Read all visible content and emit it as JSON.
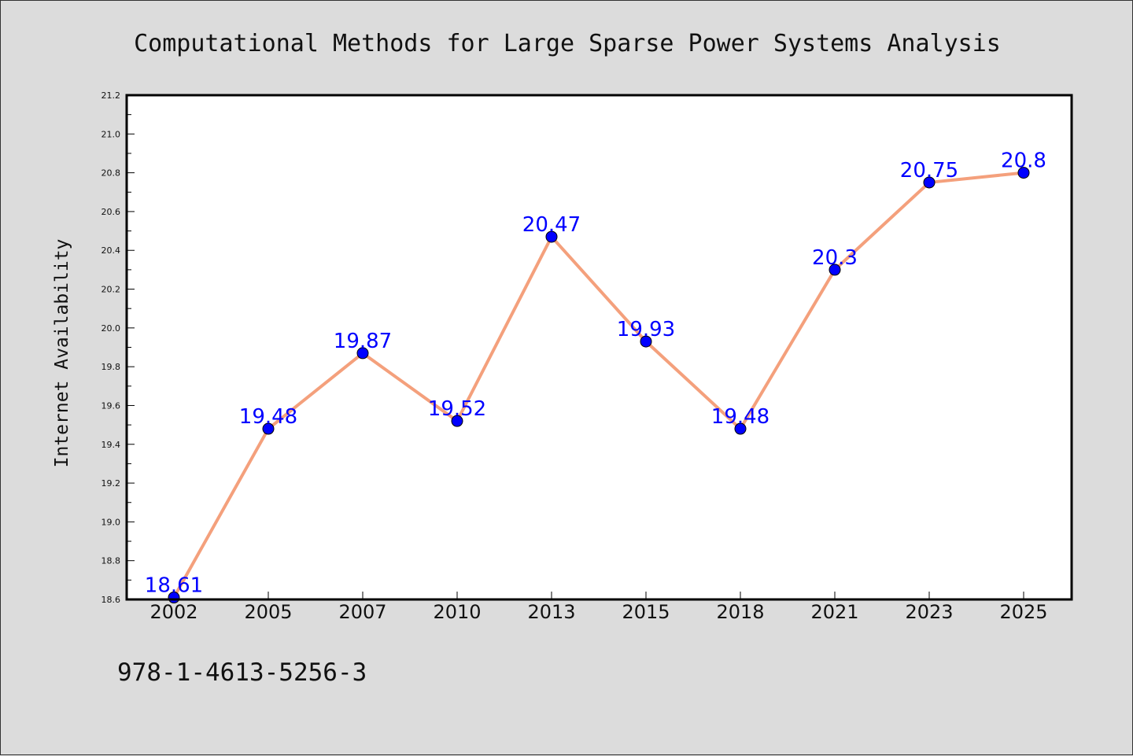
{
  "chart_data": {
    "type": "line",
    "title": "Computational Methods for Large Sparse Power Systems Analysis",
    "xlabel": "",
    "ylabel": "Internet Availability",
    "categories": [
      "2002",
      "2005",
      "2007",
      "2010",
      "2013",
      "2015",
      "2018",
      "2021",
      "2023",
      "2025"
    ],
    "series": [
      {
        "values": [
          18.61,
          19.48,
          19.87,
          19.52,
          20.47,
          19.93,
          19.48,
          20.3,
          20.75,
          20.8
        ],
        "labels": [
          "18.61",
          "19.48",
          "19.87",
          "19.52",
          "20.47",
          "19.93",
          "19.48",
          "20.3",
          "20.75",
          "20.8"
        ],
        "line_color": "#f4a07c",
        "marker_color": "#0000ff"
      }
    ],
    "ylim": [
      18.6,
      21.2
    ],
    "yticks": [
      "18.6",
      "18.8",
      "19.0",
      "19.2",
      "19.4",
      "19.6",
      "19.8",
      "20.0",
      "20.2",
      "20.4",
      "20.6",
      "20.8",
      "21.0",
      "21.2"
    ],
    "grid": false,
    "legend": "none"
  },
  "footer": {
    "isbn": "978-1-4613-5256-3"
  },
  "colors": {
    "background": "#dcdcdc",
    "plot_background": "#ffffff",
    "line": "#f4a07c",
    "marker": "#0000ff",
    "data_label": "#0000ff"
  }
}
